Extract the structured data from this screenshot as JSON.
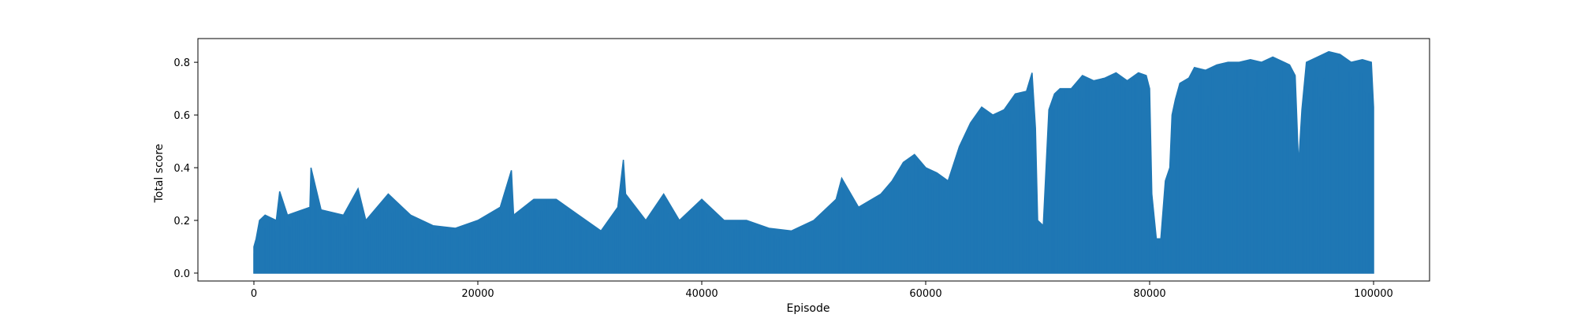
{
  "chart_data": {
    "type": "area",
    "title": "",
    "xlabel": "Episode",
    "ylabel": "Total score",
    "xlim": [
      -5000,
      105000
    ],
    "ylim": [
      -0.03,
      0.89
    ],
    "x_ticks": [
      0,
      20000,
      40000,
      60000,
      80000,
      100000
    ],
    "y_ticks": [
      0.0,
      0.2,
      0.4,
      0.6,
      0.8
    ],
    "x_tick_labels": [
      "0",
      "20000",
      "40000",
      "60000",
      "80000",
      "100000"
    ],
    "y_tick_labels": [
      "0.0",
      "0.2",
      "0.4",
      "0.6",
      "0.8"
    ],
    "grid": false,
    "series": [
      {
        "color": "#1f77b4",
        "baseline": 0.0,
        "x": [
          0,
          200,
          500,
          1000,
          2000,
          2300,
          3000,
          5000,
          5100,
          6000,
          8000,
          9300,
          10000,
          12000,
          14000,
          16000,
          18000,
          20000,
          22000,
          23000,
          23200,
          25000,
          27000,
          29000,
          31000,
          32500,
          33000,
          33200,
          35000,
          36600,
          38000,
          40000,
          42000,
          44000,
          46000,
          48000,
          50000,
          52000,
          52500,
          54000,
          56000,
          57000,
          58000,
          59000,
          60000,
          61000,
          62000,
          63000,
          64000,
          65000,
          66000,
          67000,
          68000,
          69000,
          69500,
          69800,
          70000,
          70500,
          71000,
          71500,
          72000,
          73000,
          74000,
          75000,
          76000,
          77000,
          78000,
          79000,
          79700,
          80000,
          80200,
          80600,
          81000,
          81400,
          81800,
          82000,
          82300,
          82700,
          83500,
          84000,
          85000,
          86000,
          87000,
          88000,
          89000,
          90000,
          91000,
          92000,
          92500,
          93000,
          93300,
          93600,
          94000,
          95000,
          96000,
          97000,
          98000,
          99000,
          99800,
          100000
        ],
        "peaks": [
          0.1,
          0.13,
          0.2,
          0.22,
          0.2,
          0.31,
          0.22,
          0.25,
          0.4,
          0.24,
          0.22,
          0.32,
          0.2,
          0.3,
          0.22,
          0.18,
          0.17,
          0.2,
          0.25,
          0.39,
          0.22,
          0.28,
          0.28,
          0.22,
          0.16,
          0.25,
          0.43,
          0.3,
          0.2,
          0.3,
          0.2,
          0.28,
          0.2,
          0.2,
          0.17,
          0.16,
          0.2,
          0.28,
          0.36,
          0.25,
          0.3,
          0.35,
          0.42,
          0.45,
          0.4,
          0.38,
          0.35,
          0.48,
          0.57,
          0.63,
          0.6,
          0.62,
          0.68,
          0.69,
          0.76,
          0.55,
          0.2,
          0.18,
          0.62,
          0.68,
          0.7,
          0.7,
          0.75,
          0.73,
          0.74,
          0.76,
          0.73,
          0.76,
          0.75,
          0.7,
          0.3,
          0.13,
          0.13,
          0.35,
          0.4,
          0.6,
          0.66,
          0.72,
          0.74,
          0.78,
          0.77,
          0.79,
          0.8,
          0.8,
          0.81,
          0.8,
          0.82,
          0.8,
          0.79,
          0.75,
          0.41,
          0.62,
          0.8,
          0.82,
          0.84,
          0.83,
          0.8,
          0.81,
          0.8,
          0.63
        ]
      }
    ]
  }
}
